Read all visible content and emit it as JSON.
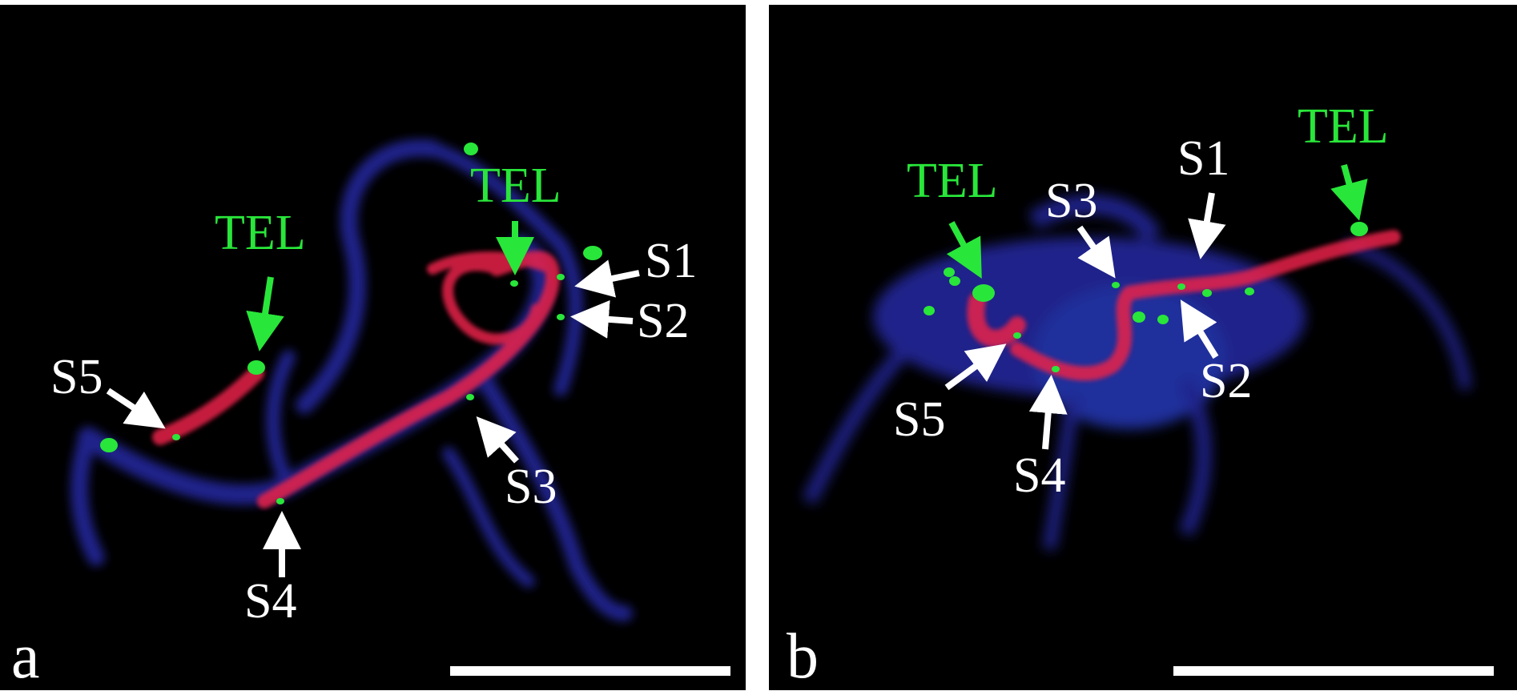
{
  "panels": [
    {
      "letter": "a",
      "telomere_labels": [
        "TEL",
        "TEL"
      ],
      "site_labels": [
        "S1",
        "S2",
        "S3",
        "S4",
        "S5"
      ]
    },
    {
      "letter": "b",
      "telomere_labels": [
        "TEL",
        "TEL"
      ],
      "site_labels": [
        "S1",
        "S2",
        "S3",
        "S4",
        "S5"
      ]
    }
  ],
  "colors": {
    "background": "#000000",
    "dapi_blue": "#2a2fb8",
    "probe_red": "#e8214a",
    "telomere_green": "#29e63a",
    "label_white": "#ffffff",
    "label_green": "#29e63a"
  }
}
